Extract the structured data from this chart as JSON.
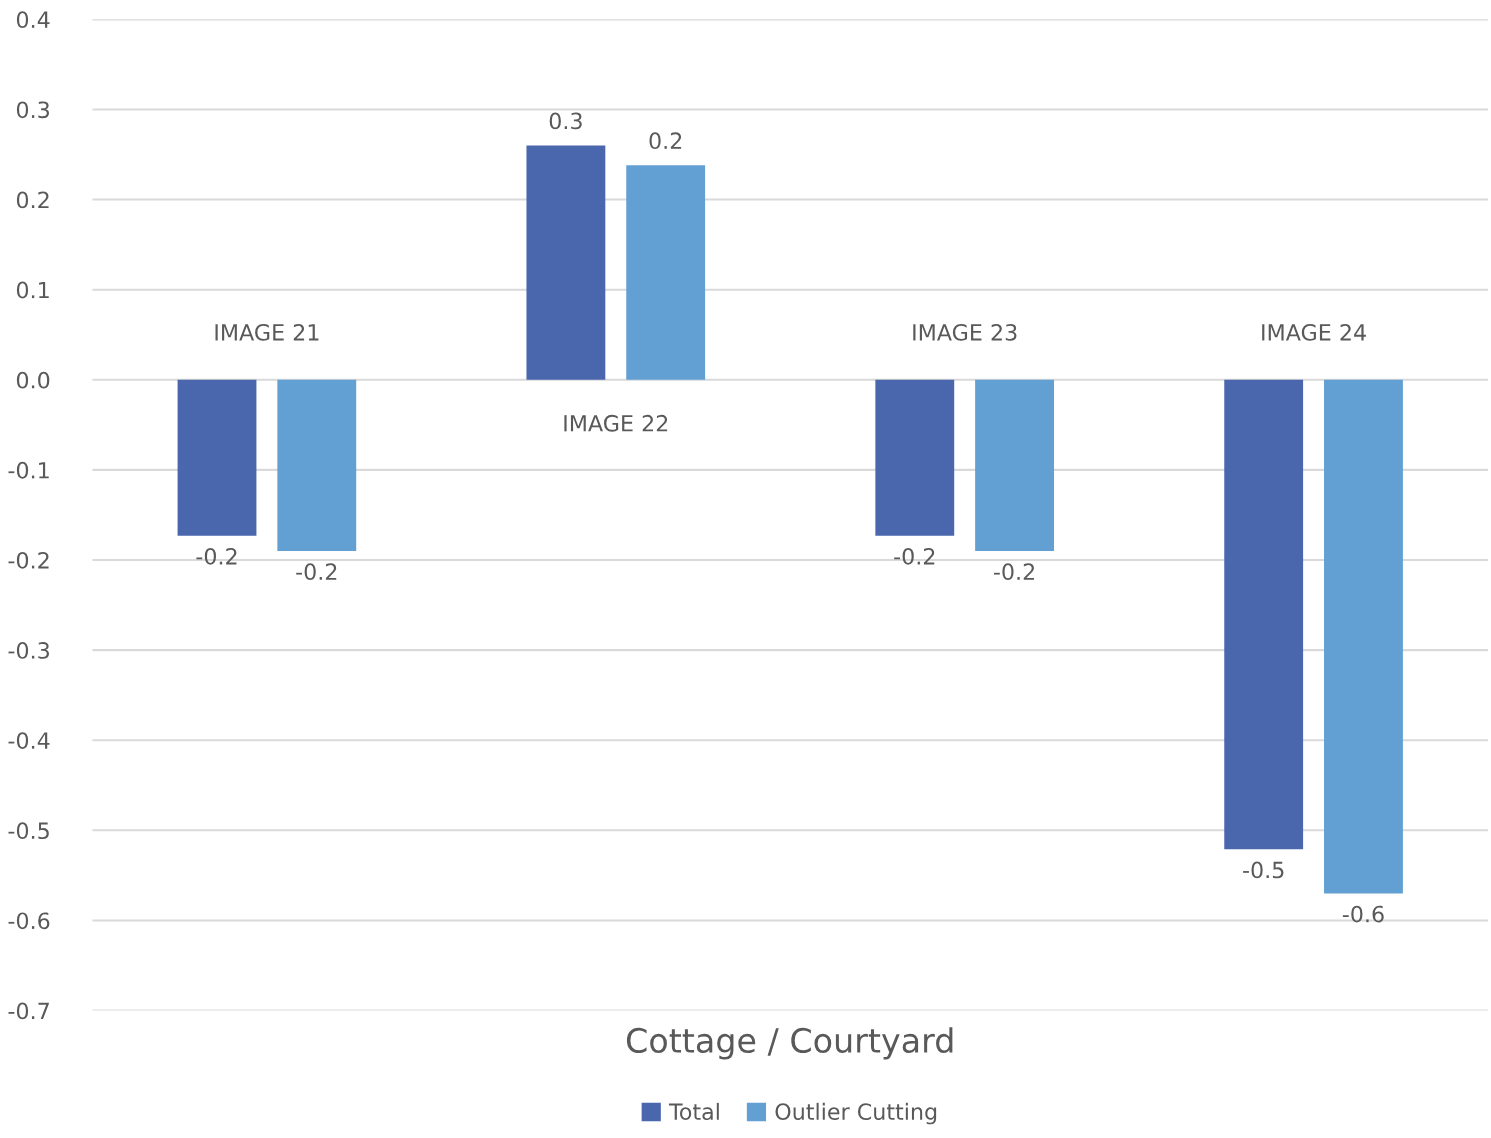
{
  "chart_data": {
    "type": "bar",
    "xlabel": "Cottage / Courtyard",
    "categories": [
      "IMAGE 21",
      "IMAGE 22",
      "IMAGE 23",
      "IMAGE 24"
    ],
    "series": [
      {
        "name": "Total",
        "color": "#4a66ad",
        "values": [
          -0.173,
          0.26,
          -0.173,
          -0.521
        ],
        "value_labels": [
          "-0.2",
          "0.3",
          "-0.2",
          "-0.5"
        ]
      },
      {
        "name": "Outlier Cutting",
        "color": "#629fd2",
        "values": [
          -0.19,
          0.238,
          -0.19,
          -0.57
        ],
        "value_labels": [
          "-0.2",
          "0.2",
          "-0.2",
          "-0.6"
        ]
      }
    ],
    "ylim": [
      -0.7,
      0.4
    ],
    "yticks": [
      0.4,
      0.3,
      0.2,
      0.1,
      {
        "value": 0,
        "label": "0.0"
      },
      -0.1,
      -0.2,
      -0.3,
      -0.4,
      -0.5,
      -0.6,
      -0.7
    ],
    "grid": "y",
    "legend": "bottom"
  }
}
